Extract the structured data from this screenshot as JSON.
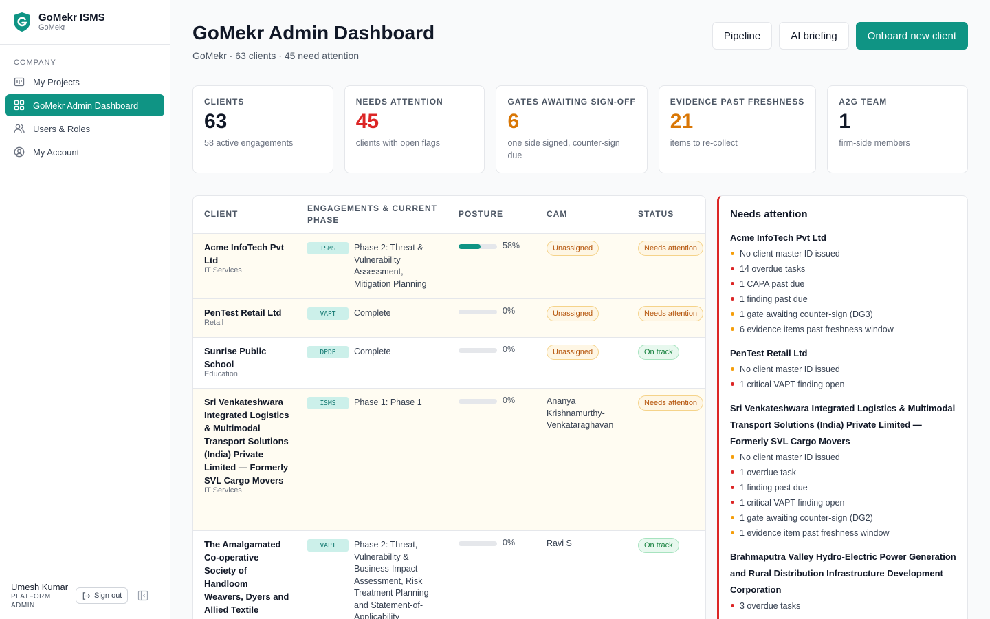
{
  "brand": {
    "name": "GoMekr ISMS",
    "sub": "GoMekr"
  },
  "sidebar": {
    "section": "COMPANY",
    "items": [
      {
        "label": "My Projects",
        "icon": "projects-icon"
      },
      {
        "label": "GoMekr Admin Dashboard",
        "icon": "grid-icon"
      },
      {
        "label": "Users & Roles",
        "icon": "users-icon"
      },
      {
        "label": "My Account",
        "icon": "account-icon"
      }
    ],
    "active": "GoMekr Admin Dashboard"
  },
  "user": {
    "name": "Umesh Kumar",
    "role": "PLATFORM ADMIN",
    "signout": "Sign out"
  },
  "header": {
    "title": "GoMekr Admin Dashboard",
    "subtitle": "GoMekr · 63 clients · 45 need attention",
    "buttons": {
      "pipeline": "Pipeline",
      "briefing": "AI briefing",
      "onboard": "Onboard new client"
    }
  },
  "stats": [
    {
      "label": "CLIENTS",
      "value": "63",
      "desc": "58 active engagements",
      "color": "#111827"
    },
    {
      "label": "NEEDS ATTENTION",
      "value": "45",
      "desc": "clients with open flags",
      "color": "#dc2626"
    },
    {
      "label": "GATES AWAITING SIGN-OFF",
      "value": "6",
      "desc": "one side signed, counter-sign due",
      "color": "#d97706"
    },
    {
      "label": "EVIDENCE PAST FRESHNESS",
      "value": "21",
      "desc": "items to re-collect",
      "color": "#d97706"
    },
    {
      "label": "A2G TEAM",
      "value": "1",
      "desc": "firm-side members",
      "color": "#111827"
    }
  ],
  "table": {
    "headers": {
      "client": "CLIENT",
      "engagement": "ENGAGEMENTS & CURRENT PHASE",
      "posture": "POSTURE",
      "cam": "CAM",
      "status": "STATUS"
    },
    "rows": [
      {
        "name": "Acme InfoTech Pvt Ltd",
        "industry": "IT Services",
        "tag": "ISMS",
        "phase": "Phase 2: Threat & Vulnerability Assessment, Mitigation Planning",
        "posture": 58,
        "posture_label": "58%",
        "cam": "Unassigned",
        "cam_assigned": false,
        "status": "Needs attention",
        "warn": true
      },
      {
        "name": "PenTest Retail Ltd",
        "industry": "Retail",
        "tag": "VAPT",
        "phase": "Complete",
        "posture": 0,
        "posture_label": "0%",
        "cam": "Unassigned",
        "cam_assigned": false,
        "status": "Needs attention",
        "warn": true
      },
      {
        "name": "Sunrise Public School",
        "industry": "Education",
        "tag": "DPDP",
        "phase": "Complete",
        "posture": 0,
        "posture_label": "0%",
        "cam": "Unassigned",
        "cam_assigned": false,
        "status": "On track",
        "warn": false
      },
      {
        "name": "Sri Venkateshwara Integrated Logistics & Multimodal Transport Solutions (India) Private Limited — Formerly SVL Cargo Movers",
        "industry": "IT Services",
        "tag": "ISMS",
        "phase": "Phase 1: Phase 1",
        "posture": 0,
        "posture_label": "0%",
        "cam": "Ananya Krishnamurthy-Venkataraghavan",
        "cam_assigned": true,
        "status": "Needs attention",
        "warn": true
      },
      {
        "name": "The Amalgamated Co-operative Society of Handloom Weavers, Dyers and Allied Textile Artisans of",
        "industry": "",
        "tag": "VAPT",
        "phase": "Phase 2: Threat, Vulnerability & Business-Impact Assessment, Risk Treatment Planning and Statement-of-Applicability",
        "posture": 0,
        "posture_label": "0%",
        "cam": "Ravi S",
        "cam_assigned": true,
        "status": "On track",
        "warn": false
      }
    ]
  },
  "attention": {
    "title": "Needs attention",
    "groups": [
      {
        "client": "Acme InfoTech Pvt Ltd",
        "items": [
          {
            "text": "No client master ID issued",
            "sev": "amber"
          },
          {
            "text": "14 overdue tasks",
            "sev": "red"
          },
          {
            "text": "1 CAPA past due",
            "sev": "red"
          },
          {
            "text": "1 finding past due",
            "sev": "red"
          },
          {
            "text": "1 gate awaiting counter-sign (DG3)",
            "sev": "amber"
          },
          {
            "text": "6 evidence items past freshness window",
            "sev": "amber"
          }
        ]
      },
      {
        "client": "PenTest Retail Ltd",
        "items": [
          {
            "text": "No client master ID issued",
            "sev": "amber"
          },
          {
            "text": "1 critical VAPT finding open",
            "sev": "red"
          }
        ]
      },
      {
        "client": "Sri Venkateshwara Integrated Logistics & Multimodal Transport Solutions (India) Private Limited — Formerly SVL Cargo Movers",
        "items": [
          {
            "text": "No client master ID issued",
            "sev": "amber"
          },
          {
            "text": "1 overdue task",
            "sev": "red"
          },
          {
            "text": "1 finding past due",
            "sev": "red"
          },
          {
            "text": "1 critical VAPT finding open",
            "sev": "red"
          },
          {
            "text": "1 gate awaiting counter-sign (DG2)",
            "sev": "amber"
          },
          {
            "text": "1 evidence item past freshness window",
            "sev": "amber"
          }
        ]
      },
      {
        "client": "Brahmaputra Valley Hydro-Electric Power Generation and Rural Distribution Infrastructure Development Corporation",
        "items": [
          {
            "text": "3 overdue tasks",
            "sev": "red"
          }
        ]
      }
    ]
  },
  "colors": {
    "accent": "#0f9484",
    "danger": "#dc2626",
    "warning": "#d97706",
    "amber_dot": "#f59e0b",
    "red_dot": "#dc2626"
  }
}
